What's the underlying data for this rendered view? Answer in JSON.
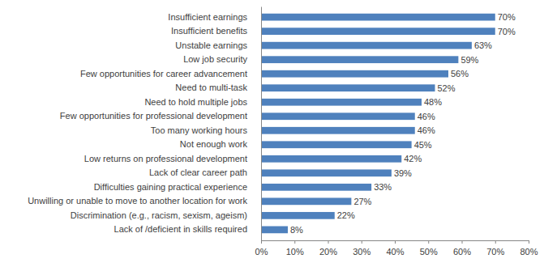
{
  "chart_data": {
    "type": "bar",
    "orientation": "horizontal",
    "categories": [
      "Insufficient earnings",
      "Insufficient benefits",
      "Unstable earnings",
      "Low job security",
      "Few opportunities for career advancement",
      "Need to multi-task",
      "Need to hold multiple jobs",
      "Few opportunities for professional development",
      "Too many working hours",
      "Not enough work",
      "Low returns on professional development",
      "Lack of clear career path",
      "Difficulties gaining practical experience",
      "Unwilling or unable to move to another location for work",
      "Discrimination (e.g., racism, sexism, ageism)",
      "Lack of /deficient in skills required"
    ],
    "values": [
      70,
      70,
      63,
      59,
      56,
      52,
      48,
      46,
      46,
      45,
      42,
      39,
      33,
      27,
      22,
      8
    ],
    "value_labels": [
      "70%",
      "70%",
      "63%",
      "59%",
      "56%",
      "52%",
      "48%",
      "46%",
      "46%",
      "45%",
      "42%",
      "39%",
      "33%",
      "27%",
      "22%",
      "8%"
    ],
    "color": "#4f81bd",
    "xlim": [
      0,
      80
    ],
    "xticks": [
      {
        "value": 0,
        "label": "0%"
      },
      {
        "value": 10,
        "label": "10%"
      },
      {
        "value": 20,
        "label": "20%"
      },
      {
        "value": 30,
        "label": "30%"
      },
      {
        "value": 40,
        "label": "40%"
      },
      {
        "value": 50,
        "label": "50%"
      },
      {
        "value": 60,
        "label": "60%"
      },
      {
        "value": 70,
        "label": "70%"
      },
      {
        "value": 80,
        "label": "80%"
      }
    ],
    "data_labels": true,
    "grid": false
  }
}
